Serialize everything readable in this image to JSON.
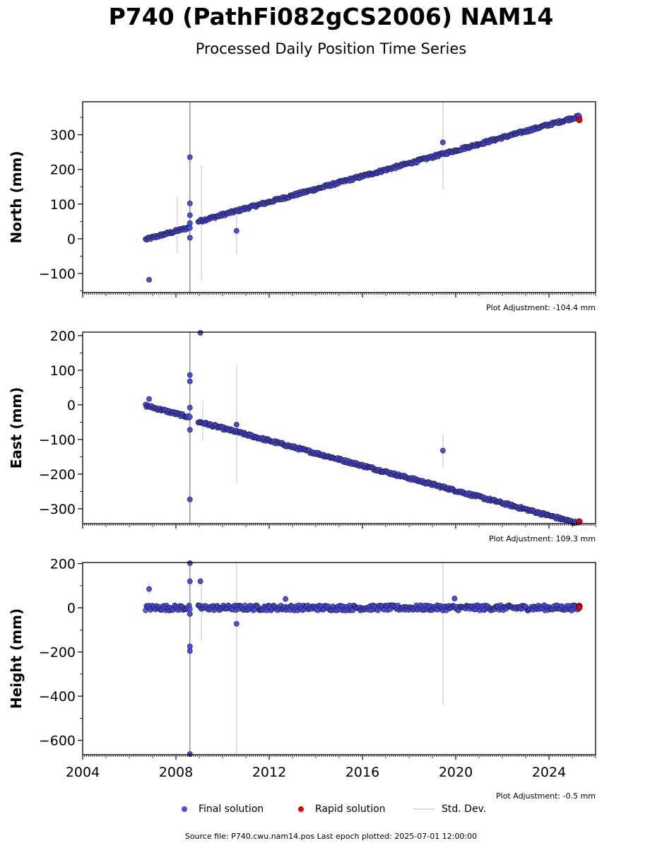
{
  "title": "P740 (PathFi082gCS2006) NAM14",
  "subtitle": "Processed Daily Position Time Series",
  "footer": "Source file: P740.cwu.nam14.pos  Last epoch plotted: 2025-07-01 12:00:00",
  "legend": {
    "final": "Final solution",
    "rapid": "Rapid solution",
    "stddev": "Std. Dev."
  },
  "colors": {
    "final": "#4b4be8",
    "final_edge": "#1a1a40",
    "rapid": "#e00000",
    "stddev": "#d9d9d9"
  },
  "chart_data": [
    {
      "type": "scatter",
      "ylabel": "North (mm)",
      "adjustment": "Plot Adjustment: -104.4 mm",
      "xlim": [
        2004,
        2026
      ],
      "ylim": [
        -155,
        395
      ],
      "yticks": [
        -100,
        0,
        100,
        200,
        300
      ],
      "trend": {
        "x": [
          2006.7,
          2025.3
        ],
        "y": [
          -2,
          343
        ],
        "spread": 4,
        "gap": [
          2008.6,
          2008.95
        ],
        "step_after_gap": 10
      },
      "outliers": [
        {
          "x": 2006.85,
          "y": -118
        },
        {
          "x": 2008.6,
          "y": 235
        },
        {
          "x": 2008.6,
          "y": 102
        },
        {
          "x": 2008.6,
          "y": 68
        },
        {
          "x": 2008.6,
          "y": 45
        },
        {
          "x": 2008.6,
          "y": 3
        },
        {
          "x": 2010.6,
          "y": 23
        },
        {
          "x": 2019.45,
          "y": 278
        }
      ],
      "rapid": [
        {
          "x": 2025.3,
          "y": 343
        }
      ],
      "errorbars": [
        {
          "x": 2008.6,
          "y0": -160,
          "y1": 400,
          "dark": true
        },
        {
          "x": 2008.05,
          "y0": -40,
          "y1": 120
        },
        {
          "x": 2009.1,
          "y0": -120,
          "y1": 210
        },
        {
          "x": 2010.6,
          "y0": -45,
          "y1": 90
        },
        {
          "x": 2019.45,
          "y0": 142,
          "y1": 400
        }
      ]
    },
    {
      "type": "scatter",
      "ylabel": "East (mm)",
      "adjustment": "Plot Adjustment: 109.3 mm",
      "xlim": [
        2004,
        2026
      ],
      "ylim": [
        -343,
        210
      ],
      "yticks": [
        -300,
        -200,
        -100,
        0,
        100,
        200
      ],
      "trend": {
        "x": [
          2006.7,
          2025.3
        ],
        "y": [
          -2,
          -337
        ],
        "spread": 4,
        "gap": [
          2008.6,
          2008.95
        ],
        "step_after_gap": -6
      },
      "outliers": [
        {
          "x": 2006.85,
          "y": 17
        },
        {
          "x": 2008.6,
          "y": 86
        },
        {
          "x": 2008.6,
          "y": 68
        },
        {
          "x": 2008.6,
          "y": -8
        },
        {
          "x": 2008.6,
          "y": -72
        },
        {
          "x": 2008.6,
          "y": -273
        },
        {
          "x": 2009.05,
          "y": 208
        },
        {
          "x": 2010.6,
          "y": -57
        },
        {
          "x": 2019.45,
          "y": -132
        }
      ],
      "rapid": [
        {
          "x": 2025.3,
          "y": -337
        }
      ],
      "errorbars": [
        {
          "x": 2008.6,
          "y0": -350,
          "y1": 215,
          "dark": true
        },
        {
          "x": 2009.15,
          "y0": -105,
          "y1": 12
        },
        {
          "x": 2010.6,
          "y0": -228,
          "y1": 115
        },
        {
          "x": 2019.45,
          "y0": -180,
          "y1": -85
        }
      ]
    },
    {
      "type": "scatter",
      "xlabel": "",
      "ylabel": "Height (mm)",
      "adjustment": "Plot Adjustment: -0.5 mm",
      "xlim": [
        2004,
        2026
      ],
      "ylim": [
        -665,
        205
      ],
      "yticks": [
        -600,
        -400,
        -200,
        0,
        200
      ],
      "xticks": [
        2004,
        2008,
        2012,
        2016,
        2020,
        2024
      ],
      "trend": {
        "x": [
          2006.7,
          2025.3
        ],
        "y": [
          0,
          0
        ],
        "spread": 12,
        "gap": [
          2008.6,
          2008.95
        ],
        "step_after_gap": 0
      },
      "outliers": [
        {
          "x": 2006.85,
          "y": 85
        },
        {
          "x": 2008.6,
          "y": 203
        },
        {
          "x": 2008.6,
          "y": 120
        },
        {
          "x": 2008.6,
          "y": -28
        },
        {
          "x": 2008.6,
          "y": -175
        },
        {
          "x": 2008.6,
          "y": -195
        },
        {
          "x": 2008.6,
          "y": -665
        },
        {
          "x": 2009.05,
          "y": 120
        },
        {
          "x": 2010.6,
          "y": -72
        },
        {
          "x": 2012.7,
          "y": 40
        },
        {
          "x": 2019.95,
          "y": 42
        }
      ],
      "rapid": [
        {
          "x": 2025.3,
          "y": 8
        },
        {
          "x": 2025.3,
          "y": 2
        }
      ],
      "errorbars": [
        {
          "x": 2008.6,
          "y0": -670,
          "y1": 210,
          "dark": true
        },
        {
          "x": 2006.85,
          "y0": 60,
          "y1": 115
        },
        {
          "x": 2009.1,
          "y0": -150,
          "y1": 140
        },
        {
          "x": 2010.6,
          "y0": -670,
          "y1": 210
        },
        {
          "x": 2012.7,
          "y0": 10,
          "y1": 60
        },
        {
          "x": 2019.45,
          "y0": -440,
          "y1": 210
        }
      ]
    }
  ]
}
